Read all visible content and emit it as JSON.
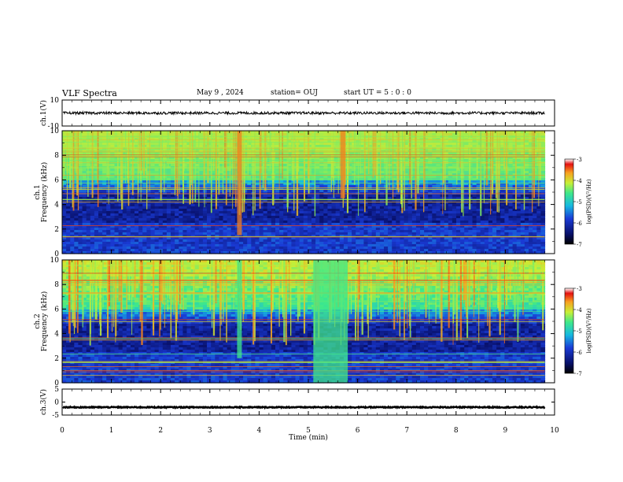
{
  "header": {
    "title": "VLF Spectra",
    "date": "May 9 , 2024",
    "station": "station= OUJ",
    "start": "start UT = 5 : 0 : 0"
  },
  "colors": {
    "spectrogram_colormap": [
      "#000000",
      "#08106a",
      "#1a3bd6",
      "#16b8e0",
      "#3fe88a",
      "#c8ef36",
      "#f8a020",
      "#e41010",
      "#ffffff"
    ]
  },
  "chart_data": [
    {
      "type": "line",
      "name": "waveform-ch1",
      "ylabel": "ch.1(V)",
      "ylim": [
        -10,
        10
      ],
      "yticks": [
        "10",
        "-10"
      ],
      "baseline_value": 0,
      "noise_amplitude": 1
    },
    {
      "type": "heatmap",
      "name": "spectrogram-ch1",
      "ylabel": "ch.1\nFrequency (kHz)",
      "ylabel_lines": [
        "ch.1",
        "Frequency (kHz)"
      ],
      "ylim": [
        0,
        10
      ],
      "yticks": [
        "0",
        "2",
        "4",
        "6",
        "8",
        "10"
      ],
      "xlim": [
        0,
        10
      ],
      "data_end_min": 9.8,
      "colorbar": {
        "label": "log(PSD)(V²/Hz)",
        "range": [
          -7,
          -3
        ],
        "ticks": [
          "-3",
          "-4",
          "-5",
          "-6",
          "-7"
        ]
      },
      "features": [
        {
          "label": "sferic band",
          "freq_khz": [
            6,
            10
          ],
          "level": "high"
        },
        {
          "label": "broadband burst",
          "time_min": 5.7,
          "freq_khz": [
            4.5,
            10
          ],
          "level": "high"
        },
        {
          "label": "burst",
          "time_min": 3.6,
          "freq_khz": [
            1.5,
            10
          ],
          "level": "high"
        }
      ]
    },
    {
      "type": "heatmap",
      "name": "spectrogram-ch2",
      "ylabel": "ch.2\nFrequency (kHz)",
      "ylabel_lines": [
        "ch.2",
        "Frequency (kHz)"
      ],
      "ylim": [
        0,
        10
      ],
      "yticks": [
        "0",
        "2",
        "4",
        "6",
        "8",
        "10"
      ],
      "xlim": [
        0,
        10
      ],
      "data_end_min": 9.8,
      "colorbar": {
        "label": "log(PSD)(V²/Hz)",
        "range": [
          -7,
          -3
        ],
        "ticks": [
          "-3",
          "-4",
          "-5",
          "-6",
          "-7"
        ]
      },
      "features": [
        {
          "label": "broadband noise block",
          "time_min": [
            5.1,
            5.8
          ],
          "freq_khz": [
            0,
            10
          ],
          "level": "medium"
        },
        {
          "label": "burst",
          "time_min": 3.6,
          "freq_khz": [
            2,
            10
          ],
          "level": "medium"
        }
      ]
    },
    {
      "type": "line",
      "name": "waveform-ch3",
      "ylabel": "ch.3(V)",
      "ylim": [
        -5,
        5
      ],
      "yticks": [
        "5",
        "0",
        "-5"
      ],
      "baseline_value": -2,
      "noise_amplitude": 0.2
    }
  ],
  "xaxis": {
    "label": "Time (min)",
    "ticks": [
      "0",
      "1",
      "2",
      "3",
      "4",
      "5",
      "6",
      "7",
      "8",
      "9",
      "10"
    ]
  }
}
